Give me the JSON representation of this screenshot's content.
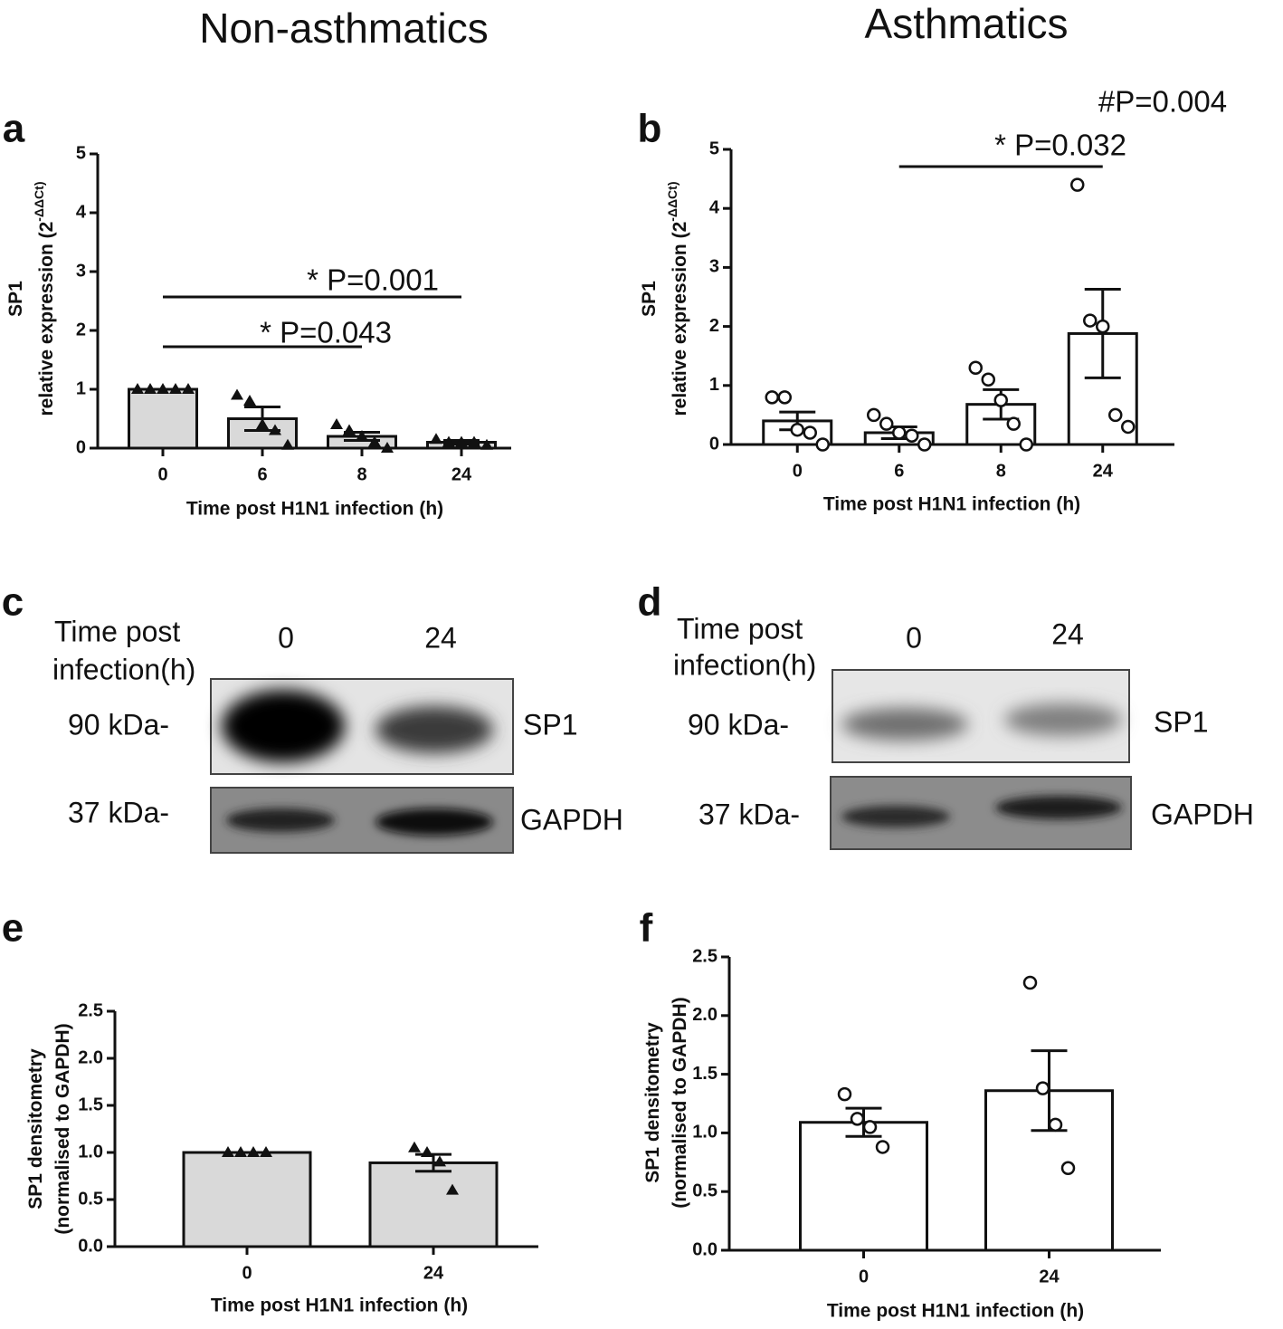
{
  "headers": [
    "Non-asthmatics",
    "Asthmatics"
  ],
  "panel_labels": [
    "a",
    "b",
    "c",
    "d",
    "e",
    "f"
  ],
  "chart_data": [
    {
      "type": "bar",
      "categories": [
        "0",
        "6",
        "8",
        "24"
      ],
      "values": [
        1.0,
        0.5,
        0.2,
        0.1
      ],
      "errors": [
        0,
        0.2,
        0.07,
        0.03
      ],
      "points": [
        [
          1,
          1,
          1,
          1,
          1
        ],
        [
          0.9,
          0.8,
          0.4,
          0.3,
          0.05
        ],
        [
          0.4,
          0.3,
          0.2,
          0.1,
          0.0
        ],
        [
          0.15,
          0.1,
          0.1,
          0.1,
          0.05
        ]
      ],
      "color": "#d9d9d9",
      "marker": "triangle",
      "ylim": [
        0,
        5
      ],
      "yticks": [
        0,
        1,
        2,
        3,
        4,
        5
      ],
      "ylabel": [
        "SP1",
        "relative expression  (2"
      ],
      "ylabel_sup": "-ΔΔCt)",
      "xlabel": "Time post H1N1 infection (h)",
      "annotations": [
        {
          "text": "* P=0.043",
          "from": "0",
          "to": "8"
        },
        {
          "text": "* P=0.001",
          "from": "0",
          "to": "24"
        }
      ]
    },
    {
      "type": "bar",
      "categories": [
        "0",
        "6",
        "8",
        "24"
      ],
      "values": [
        0.4,
        0.2,
        0.68,
        1.88
      ],
      "errors": [
        0.15,
        0.1,
        0.25,
        0.75
      ],
      "points": [
        [
          0.8,
          0.8,
          0.25,
          0.2,
          0.0
        ],
        [
          0.5,
          0.35,
          0.2,
          0.15,
          0.0
        ],
        [
          1.3,
          1.1,
          0.75,
          0.35,
          0.0
        ],
        [
          4.4,
          2.1,
          2.0,
          0.5,
          0.3
        ]
      ],
      "color": "#ffffff",
      "marker": "circle",
      "ylim": [
        0,
        5
      ],
      "yticks": [
        0,
        1,
        2,
        3,
        4,
        5
      ],
      "ylabel": [
        "SP1",
        "relative expression  (2"
      ],
      "ylabel_sup": "-ΔΔCt)",
      "xlabel": "Time post H1N1 infection (h)",
      "annotations": [
        {
          "text": "* P=0.032",
          "from": "6",
          "to": "24"
        },
        {
          "text": "#P=0.004"
        }
      ]
    },
    {
      "type": "bar",
      "categories": [
        "0",
        "24"
      ],
      "values": [
        1.0,
        0.89
      ],
      "errors": [
        0,
        0.09
      ],
      "points": [
        [
          1,
          1,
          1,
          1
        ],
        [
          1.05,
          1.0,
          0.9,
          0.6
        ]
      ],
      "color": "#d9d9d9",
      "marker": "triangle",
      "ylim": [
        0,
        2.5
      ],
      "yticks": [
        {
          "value": 0,
          "label": "0.0"
        },
        {
          "value": 0.5,
          "label": "0.5"
        },
        {
          "value": 1,
          "label": "1.0"
        },
        {
          "value": 1.5,
          "label": "1.5"
        },
        {
          "value": 2,
          "label": "2.0"
        },
        {
          "value": 2.5,
          "label": "2.5"
        }
      ],
      "ylabel": [
        "SP1 densitometry",
        "(normalised to GAPDH)"
      ],
      "xlabel": "Time post H1N1 infection (h)",
      "annotations": []
    },
    {
      "type": "bar",
      "categories": [
        "0",
        "24"
      ],
      "values": [
        1.09,
        1.36
      ],
      "errors": [
        0.12,
        0.34
      ],
      "points": [
        [
          1.33,
          1.12,
          1.05,
          0.88
        ],
        [
          2.28,
          1.38,
          1.07,
          0.7
        ]
      ],
      "color": "#ffffff",
      "marker": "circle",
      "ylim": [
        0,
        2.5
      ],
      "yticks": [
        {
          "value": 0,
          "label": "0.0"
        },
        {
          "value": 0.5,
          "label": "0.5"
        },
        {
          "value": 1,
          "label": "1.0"
        },
        {
          "value": 1.5,
          "label": "1.5"
        },
        {
          "value": 2,
          "label": "2.0"
        },
        {
          "value": 2.5,
          "label": "2.5"
        }
      ],
      "ylabel": [
        "SP1 densitometry",
        "(normalised to GAPDH)"
      ],
      "xlabel": "Time post H1N1 infection (h)",
      "annotations": []
    }
  ],
  "blots": [
    {
      "time_label": [
        "Time post",
        "infection(h)"
      ],
      "lanes": [
        "0",
        "24"
      ],
      "rows": [
        {
          "size": "90 kDa-",
          "protein": "SP1"
        },
        {
          "size": "37 kDa-",
          "protein": "GAPDH"
        }
      ]
    },
    {
      "time_label": [
        "Time post",
        "infection(h)"
      ],
      "lanes": [
        "0",
        "24"
      ],
      "rows": [
        {
          "size": "90 kDa-",
          "protein": "SP1"
        },
        {
          "size": "37 kDa-",
          "protein": "GAPDH"
        }
      ]
    }
  ]
}
